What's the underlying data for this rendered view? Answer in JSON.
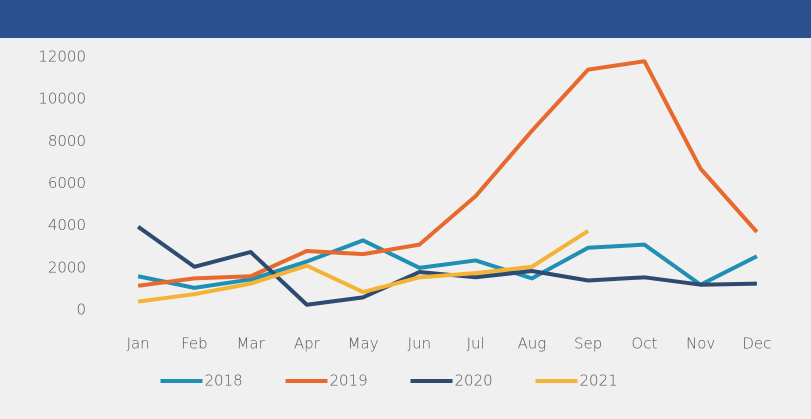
{
  "chart_data": {
    "type": "line",
    "categories": [
      "Jan",
      "Feb",
      "Mar",
      "Apr",
      "May",
      "Jun",
      "Jul",
      "Aug",
      "Sep",
      "Oct",
      "Nov",
      "Dec"
    ],
    "series": [
      {
        "name": "2018",
        "color": "#1f8fb3",
        "values": [
          1600,
          1050,
          1450,
          2300,
          3300,
          2000,
          2350,
          1500,
          2950,
          3100,
          1200,
          2550
        ]
      },
      {
        "name": "2019",
        "color": "#e8692d",
        "values": [
          1150,
          1500,
          1600,
          2800,
          2650,
          3100,
          5400,
          8500,
          11400,
          11800,
          6700,
          3700
        ]
      },
      {
        "name": "2020",
        "color": "#2e4a70",
        "values": [
          3950,
          2050,
          2750,
          250,
          600,
          1800,
          1550,
          1850,
          1400,
          1550,
          1200,
          1250
        ]
      },
      {
        "name": "2021",
        "color": "#f5b335",
        "values": [
          400,
          750,
          1250,
          2100,
          850,
          1550,
          1750,
          2050,
          3750,
          null,
          null,
          null
        ]
      }
    ],
    "ylim": [
      0,
      12000
    ],
    "yticks": [
      0,
      2000,
      4000,
      6000,
      8000,
      10000,
      12000
    ],
    "grid": false
  }
}
